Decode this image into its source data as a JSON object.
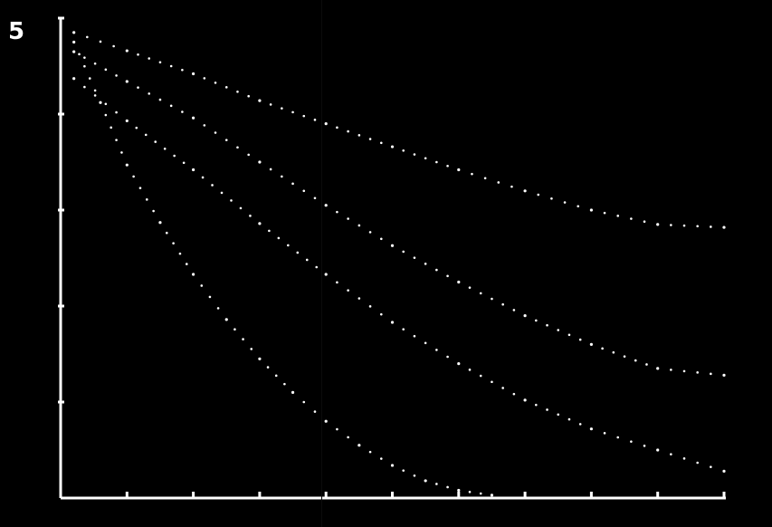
{
  "figure": {
    "label": "5"
  },
  "chart_data": {
    "type": "scatter",
    "title": "",
    "xlabel": "",
    "ylabel": "",
    "xlim": [
      0,
      10
    ],
    "ylim": [
      0,
      5
    ],
    "x_ticks": [
      0,
      1,
      2,
      3,
      4,
      5,
      6,
      7,
      8,
      9,
      10
    ],
    "y_ticks": [
      0,
      1,
      2,
      3,
      4,
      5
    ],
    "grid": false,
    "colors": {
      "background": "#000000",
      "foreground": "#ffffff"
    },
    "series": [
      {
        "x": [
          0.2,
          1.0,
          2.0,
          3.0,
          4.0,
          5.0,
          6.0,
          7.0,
          8.0,
          9.0,
          10.0
        ],
        "values": [
          4.85,
          4.66,
          4.42,
          4.14,
          3.9,
          3.66,
          3.42,
          3.2,
          3.0,
          2.85,
          2.82
        ]
      },
      {
        "x": [
          0.2,
          1.0,
          2.0,
          3.0,
          4.0,
          5.0,
          6.0,
          7.0,
          8.0,
          9.0,
          10.0
        ],
        "values": [
          4.65,
          4.34,
          3.96,
          3.5,
          3.05,
          2.63,
          2.25,
          1.9,
          1.6,
          1.35,
          1.28
        ]
      },
      {
        "x": [
          0.2,
          1.0,
          2.0,
          3.0,
          4.0,
          5.0,
          6.0,
          7.0,
          8.0,
          9.0,
          10.0
        ],
        "values": [
          4.37,
          3.93,
          3.42,
          2.86,
          2.33,
          1.83,
          1.4,
          1.02,
          0.72,
          0.5,
          0.28
        ]
      },
      {
        "x": [
          0.2,
          0.6,
          1.0,
          1.5,
          2.0,
          2.5,
          3.0,
          3.5,
          4.0,
          4.5,
          5.0,
          5.5,
          6.0,
          6.5
        ],
        "values": [
          4.75,
          4.12,
          3.47,
          2.87,
          2.33,
          1.86,
          1.45,
          1.1,
          0.8,
          0.55,
          0.34,
          0.18,
          0.08,
          0.03
        ]
      }
    ]
  }
}
